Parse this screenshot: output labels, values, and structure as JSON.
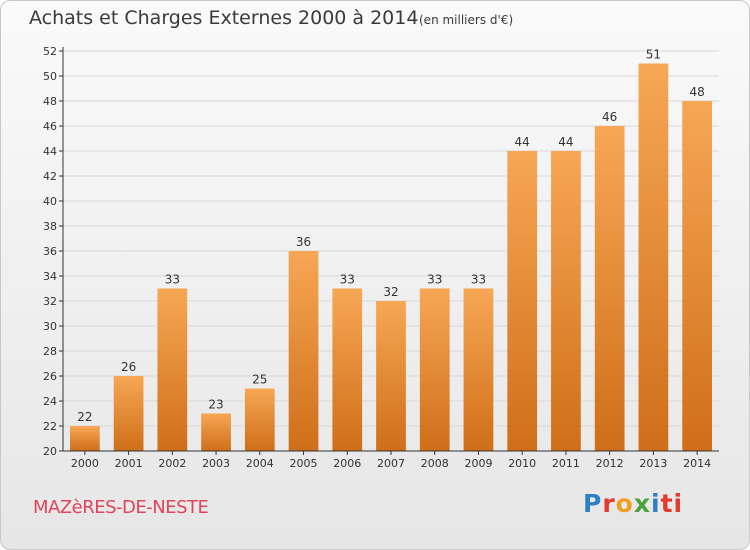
{
  "header": {
    "title": "Achats et Charges Externes 2000 à 2014",
    "subtitle": "(en milliers d'€)"
  },
  "footer": {
    "commune": "MAZèRES-DE-NESTE",
    "logo_text": "Proxiti"
  },
  "colors": {
    "bar_top": "#f7a755",
    "bar_bottom": "#cf6e18",
    "grid": "#d8d8d8",
    "axis": "#333333",
    "commune": "#e0455a"
  },
  "chart_data": {
    "type": "bar",
    "title": "Achats et Charges Externes 2000 à 2014",
    "subtitle": "(en milliers d'€)",
    "xlabel": "",
    "ylabel": "",
    "categories": [
      "2000",
      "2001",
      "2002",
      "2003",
      "2004",
      "2005",
      "2006",
      "2007",
      "2008",
      "2009",
      "2010",
      "2011",
      "2012",
      "2013",
      "2014"
    ],
    "values": [
      22,
      26,
      33,
      23,
      25,
      36,
      33,
      32,
      33,
      33,
      44,
      44,
      46,
      51,
      48
    ],
    "ylim": [
      20,
      52
    ],
    "yticks": [
      20,
      22,
      24,
      26,
      28,
      30,
      32,
      34,
      36,
      38,
      40,
      42,
      44,
      46,
      48,
      50,
      52
    ],
    "grid": true,
    "data_labels": true
  }
}
